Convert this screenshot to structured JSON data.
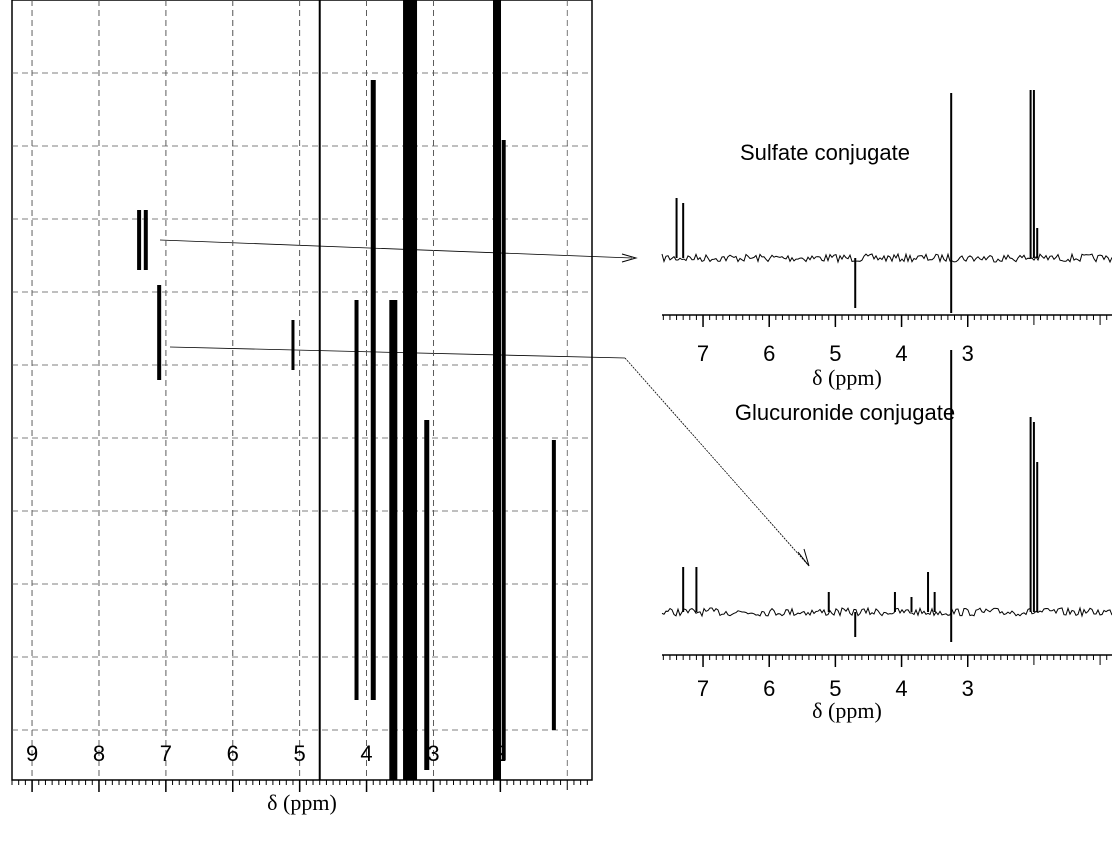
{
  "chart_data": [
    {
      "type": "contour",
      "xlabel": "δ (ppm)",
      "xlim": [
        9.3,
        0.63
      ],
      "xticks": [
        9,
        8,
        7,
        6,
        5,
        4,
        3,
        2
      ],
      "grid": true,
      "color": "#000000",
      "peaks_x": [
        7.4,
        7.3,
        7.1,
        5.1,
        4.7,
        4.15,
        3.9,
        3.6,
        3.35,
        3.1,
        2.05,
        1.95,
        1.2
      ]
    },
    {
      "type": "spectrum",
      "title": "Sulfate conjugate",
      "xlabel": "δ (ppm)",
      "xlim": [
        7.62,
        0.82
      ],
      "xticks": [
        7,
        6,
        5,
        4,
        3
      ],
      "color": "#000000",
      "x": [
        7.4,
        7.3,
        4.7,
        3.25,
        3.25,
        2.05,
        2.0,
        1.95
      ],
      "values": [
        60,
        55,
        -50,
        -55,
        165,
        168,
        168,
        30
      ]
    },
    {
      "type": "spectrum",
      "title": "Glucuronide conjugate",
      "xlabel": "δ (ppm)",
      "xlim": [
        7.62,
        0.82
      ],
      "xticks": [
        7,
        6,
        5,
        4,
        3
      ],
      "color": "#000000",
      "x": [
        7.3,
        7.1,
        5.1,
        4.7,
        4.1,
        3.85,
        3.6,
        3.5,
        3.25,
        3.25,
        2.05,
        2.0,
        1.95
      ],
      "values": [
        45,
        45,
        20,
        -25,
        20,
        15,
        40,
        20,
        262,
        -30,
        195,
        190,
        150
      ]
    }
  ]
}
